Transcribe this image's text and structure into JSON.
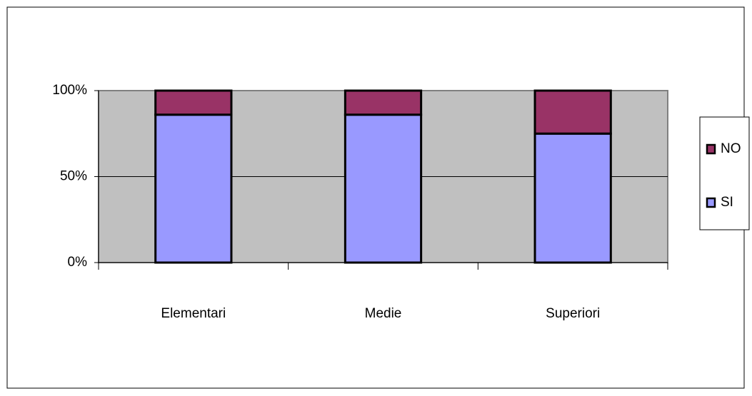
{
  "chart_data": {
    "type": "stacked_bar",
    "categories": [
      "Elementari",
      "Medie",
      "Superiori"
    ],
    "series": [
      {
        "name": "SI",
        "color": "#9999ff",
        "values": [
          86,
          86,
          75
        ]
      },
      {
        "name": "NO",
        "color": "#993366",
        "values": [
          14,
          14,
          25
        ]
      }
    ],
    "ylim": [
      0,
      100
    ],
    "yticks": [
      {
        "value": 0,
        "label": "0%"
      },
      {
        "value": 50,
        "label": "50%"
      },
      {
        "value": 100,
        "label": "100%"
      }
    ],
    "grid": true,
    "legend": "right"
  }
}
